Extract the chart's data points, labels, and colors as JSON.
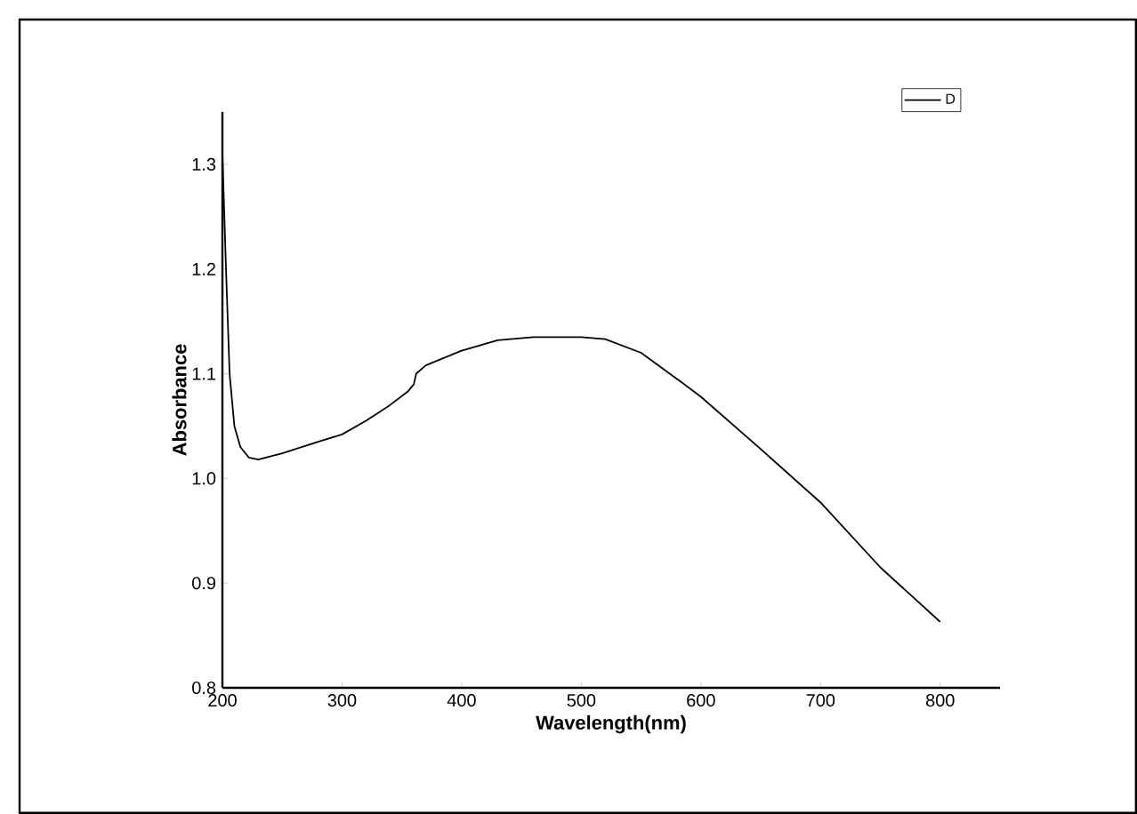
{
  "chart_data": {
    "type": "line",
    "xlabel": "Wavelength(nm)",
    "ylabel": "Absorbance",
    "series": [
      {
        "name": "D",
        "color": "#000000",
        "x": [
          200,
          203,
          206,
          210,
          215,
          222,
          230,
          250,
          280,
          300,
          320,
          340,
          355,
          360,
          362,
          370,
          400,
          430,
          460,
          500,
          520,
          550,
          580,
          600,
          650,
          700,
          750,
          800
        ],
        "values": [
          1.31,
          1.2,
          1.1,
          1.05,
          1.03,
          1.02,
          1.018,
          1.024,
          1.035,
          1.042,
          1.055,
          1.07,
          1.083,
          1.09,
          1.1,
          1.108,
          1.122,
          1.132,
          1.135,
          1.135,
          1.133,
          1.12,
          1.095,
          1.078,
          1.028,
          0.977,
          0.915,
          0.863
        ]
      }
    ],
    "xlim": [
      200,
      850
    ],
    "ylim": [
      0.8,
      1.35
    ],
    "xticks": [
      200,
      300,
      400,
      500,
      600,
      700,
      800
    ],
    "yticks": [
      0.8,
      0.9,
      {
        "value": 1,
        "label": "1.0"
      },
      1.1,
      1.2,
      1.3
    ],
    "legend": "top right",
    "grid": false,
    "marker": "none",
    "line_style": "solid"
  }
}
